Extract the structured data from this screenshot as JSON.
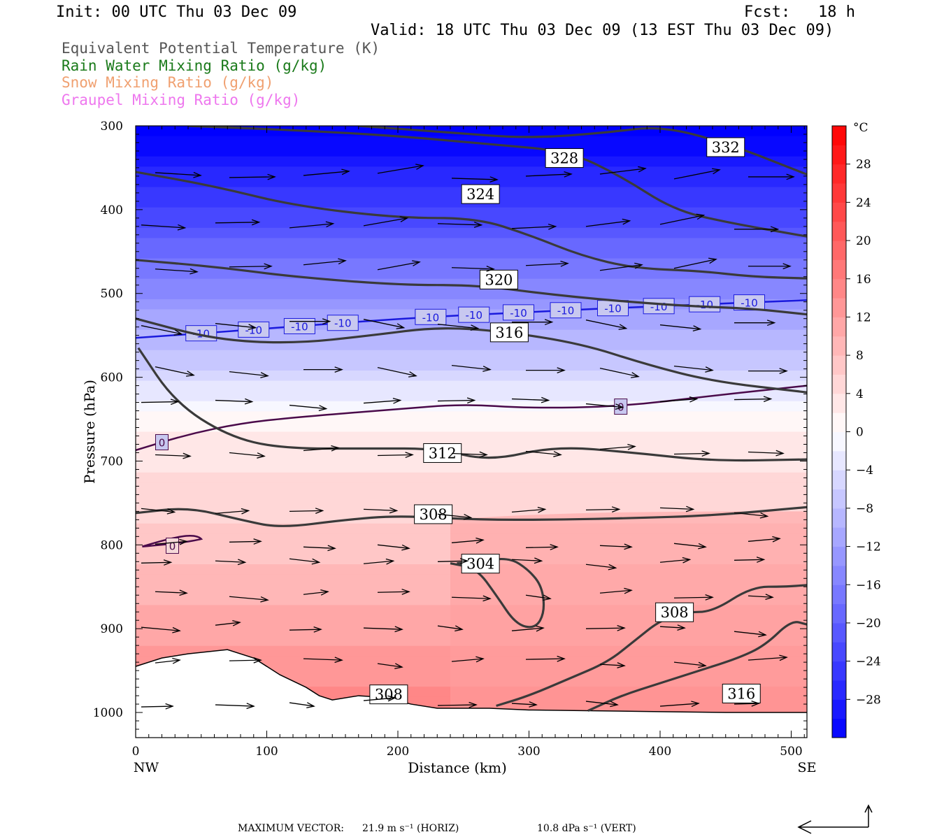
{
  "header": {
    "init": "Init: 00 UTC Thu 03 Dec 09",
    "fcst": "Fcst:   18 h",
    "valid": "Valid: 18 UTC Thu 03 Dec 09 (13 EST Thu 03 Dec 09)"
  },
  "titles": [
    {
      "text": "Equivalent Potential Temperature (K)",
      "color": "#555555"
    },
    {
      "text": "Rain Water Mixing Ratio (g/kg)",
      "color": "#1a7a1a"
    },
    {
      "text": "Snow Mixing Ratio (g/kg)",
      "color": "#f0a070"
    },
    {
      "text": "Graupel Mixing Ratio (g/kg)",
      "color": "#ee77ee"
    }
  ],
  "footer": {
    "max_vector_label": "MAXIMUM VECTOR:",
    "horiz": "21.9 m s⁻¹ (HORIZ)",
    "vert": "10.8 dPa s⁻¹ (VERT)"
  },
  "chart_data": {
    "type": "heatmap",
    "description_fill": "temperature (°C) shaded cross-section",
    "xlabel": "Distance (km)",
    "ylabel": "Pressure (hPa)",
    "x_ticks": [
      0,
      100,
      200,
      300,
      400,
      500
    ],
    "y_ticks": [
      300,
      400,
      500,
      600,
      700,
      800,
      900,
      1000
    ],
    "xlim": [
      0,
      512
    ],
    "ylim": [
      1030,
      300
    ],
    "x_end_labels": {
      "left": "NW",
      "right": "SE"
    },
    "colorbar": {
      "unit": "°C",
      "ticks": [
        28,
        24,
        20,
        16,
        12,
        8,
        4,
        0,
        -4,
        -8,
        -12,
        -16,
        -20,
        -24,
        -28
      ],
      "range": [
        -32,
        32
      ]
    },
    "theta_e_contours": [
      {
        "label": "332",
        "x": [
          170,
          240,
          300,
          360,
          400,
          450,
          512
        ],
        "y": [
          300,
          308,
          315,
          308,
          300,
          320,
          358
        ]
      },
      {
        "label": "328",
        "x": [
          40,
          120,
          200,
          270,
          330,
          370,
          410,
          450,
          512
        ],
        "y": [
          300,
          305,
          312,
          322,
          330,
          360,
          400,
          415,
          432
        ]
      },
      {
        "label": "324",
        "x": [
          0,
          60,
          120,
          200,
          260,
          300,
          340,
          380,
          430,
          470,
          512
        ],
        "y": [
          355,
          372,
          395,
          410,
          410,
          430,
          455,
          470,
          473,
          480,
          482
        ]
      },
      {
        "label": "320",
        "x": [
          0,
          60,
          120,
          200,
          260,
          310,
          360,
          420,
          470,
          512
        ],
        "y": [
          460,
          468,
          480,
          490,
          490,
          500,
          508,
          515,
          518,
          525
        ]
      },
      {
        "label": "316",
        "x": [
          0,
          60,
          120,
          180,
          230,
          280,
          340,
          390,
          440,
          512
        ],
        "y": [
          530,
          555,
          560,
          550,
          540,
          545,
          560,
          585,
          605,
          618
        ]
      },
      {
        "label": "312",
        "x": [
          2,
          30,
          70,
          110,
          180,
          230,
          270,
          320,
          380,
          440,
          512
        ],
        "y": [
          565,
          630,
          670,
          685,
          685,
          685,
          700,
          682,
          690,
          700,
          698
        ]
      },
      {
        "label": "308",
        "x": [
          0,
          40,
          80,
          110,
          160,
          200,
          260,
          320,
          380,
          440,
          512
        ],
        "y": [
          762,
          755,
          770,
          780,
          770,
          765,
          770,
          770,
          768,
          765,
          755
        ]
      },
      {
        "label": "304",
        "x": [
          240,
          260,
          275,
          290,
          305,
          312,
          310,
          300,
          285,
          262,
          245
        ],
        "y": [
          822,
          828,
          860,
          895,
          900,
          880,
          850,
          830,
          815,
          820,
          822
        ]
      },
      {
        "label": "308",
        "x": [
          275,
          300,
          330,
          360,
          380,
          400,
          420,
          440,
          470,
          495,
          512
        ],
        "y": [
          992,
          980,
          960,
          940,
          915,
          890,
          880,
          880,
          850,
          850,
          848
        ]
      },
      {
        "label": "316",
        "x": [
          345,
          370,
          400,
          430,
          460,
          480,
          500,
          512
        ],
        "y": [
          998,
          980,
          965,
          950,
          935,
          920,
          890,
          895
        ]
      }
    ],
    "temperature_contours": [
      {
        "label": "-10",
        "color": "#1a1add",
        "x": [
          0,
          100,
          200,
          300,
          400,
          512
        ],
        "y": [
          553,
          542,
          530,
          522,
          515,
          508
        ]
      },
      {
        "label": "0",
        "color": "#4a0a4a",
        "x": [
          0,
          40,
          80,
          120,
          200,
          250,
          300,
          370,
          440,
          512
        ],
        "y": [
          687,
          668,
          655,
          648,
          638,
          632,
          637,
          635,
          622,
          610
        ]
      }
    ],
    "rain_water_mixing_ratio": [],
    "snow_mixing_ratio": [],
    "graupel_mixing_ratio": []
  }
}
